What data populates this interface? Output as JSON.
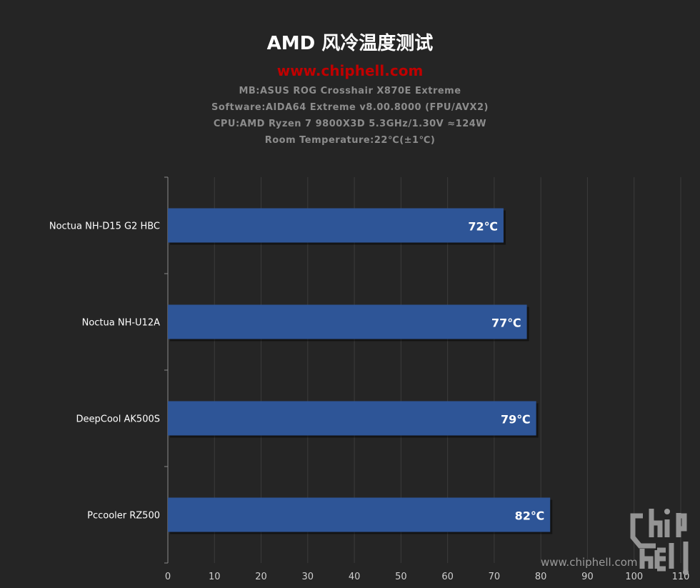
{
  "header": {
    "title": "AMD 风冷温度测试",
    "site": "www.chiphell.com",
    "specs": [
      "MB:ASUS  ROG  Crosshair  X870E  Extreme",
      "Software:AIDA64  Extreme  v8.00.8000  (FPU/AVX2)",
      "CPU:AMD  Ryzen  7  9800X3D  5.3GHz/1.30V  ≈124W",
      "Room  Temperature:22℃(±1℃)"
    ]
  },
  "watermark": {
    "text": "www.chiphell.com",
    "logo": "chip hell"
  },
  "colors": {
    "bar": "#2e5597",
    "background": "#252525",
    "site": "#c00000"
  },
  "chart_data": {
    "type": "bar",
    "orientation": "horizontal",
    "categories": [
      "Noctua NH-D15 G2 HBC",
      "Noctua NH-U12A",
      "DeepCool AK500S",
      "Pccooler RZ500"
    ],
    "values": [
      72,
      77,
      79,
      82
    ],
    "data_labels": [
      "72℃",
      "77℃",
      "79℃",
      "82℃"
    ],
    "xlim": [
      0,
      110
    ],
    "xticks": [
      0,
      10,
      20,
      30,
      40,
      50,
      60,
      70,
      80,
      90,
      100,
      110
    ],
    "grid": "vertical",
    "legend": "none"
  }
}
